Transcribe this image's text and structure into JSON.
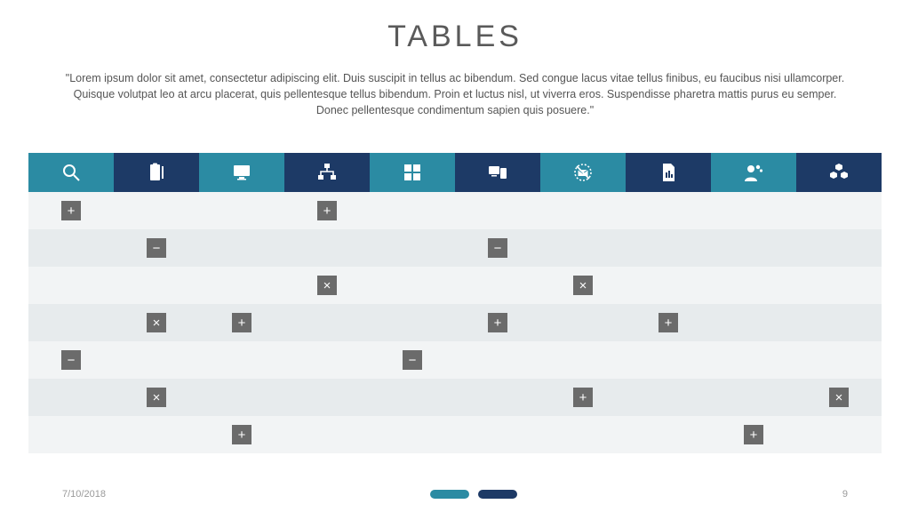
{
  "title": "TABLES",
  "subtitle": "\"Lorem ipsum dolor sit amet, consectetur adipiscing elit. Duis suscipit in tellus ac bibendum. Sed congue lacus vitae tellus finibus, eu faucibus nisi ullamcorper. Quisque volutpat leo at arcu placerat, quis pellentesque tellus bibendum. Proin et luctus nisl, ut viverra eros. Suspendisse pharetra mattis purus eu semper. Donec pellentesque condimentum sapien quis posuere.\"",
  "colors": {
    "teal": "#2b8ba3",
    "navy": "#1d3a66",
    "row_light": "#f2f4f5",
    "row_alt": "#e7ebed",
    "tag_bg": "#6b6b6b",
    "title_text": "#5a5a5a",
    "body_text": "#555555",
    "footer_text": "#9a9a9a",
    "icon_fill": "#ffffff"
  },
  "header": {
    "columns": [
      {
        "icon": "search",
        "bg_key": "teal"
      },
      {
        "icon": "clipboard",
        "bg_key": "navy"
      },
      {
        "icon": "monitor",
        "bg_key": "teal"
      },
      {
        "icon": "network",
        "bg_key": "navy"
      },
      {
        "icon": "grid",
        "bg_key": "teal"
      },
      {
        "icon": "devices",
        "bg_key": "navy"
      },
      {
        "icon": "no-mail",
        "bg_key": "teal"
      },
      {
        "icon": "document",
        "bg_key": "navy"
      },
      {
        "icon": "persona",
        "bg_key": "teal"
      },
      {
        "icon": "cubes",
        "bg_key": "navy"
      }
    ]
  },
  "symbols": {
    "plus": "+",
    "minus": "−",
    "cross": "×"
  },
  "rows": [
    {
      "bg_key": "row_light",
      "cells": [
        "plus",
        null,
        null,
        "plus",
        null,
        null,
        null,
        null,
        null,
        null
      ]
    },
    {
      "bg_key": "row_alt",
      "cells": [
        null,
        "minus",
        null,
        null,
        null,
        "minus",
        null,
        null,
        null,
        null
      ]
    },
    {
      "bg_key": "row_light",
      "cells": [
        null,
        null,
        null,
        "cross",
        null,
        null,
        "cross",
        null,
        null,
        null
      ]
    },
    {
      "bg_key": "row_alt",
      "cells": [
        null,
        "cross",
        "plus",
        null,
        null,
        "plus",
        null,
        "plus",
        null,
        null
      ]
    },
    {
      "bg_key": "row_light",
      "cells": [
        "minus",
        null,
        null,
        null,
        "minus",
        null,
        null,
        null,
        null,
        null
      ]
    },
    {
      "bg_key": "row_alt",
      "cells": [
        null,
        "cross",
        null,
        null,
        null,
        null,
        "plus",
        null,
        null,
        "cross"
      ]
    },
    {
      "bg_key": "row_light",
      "cells": [
        null,
        null,
        "plus",
        null,
        null,
        null,
        null,
        null,
        "plus",
        null
      ]
    }
  ],
  "footer": {
    "date": "7/10/2018",
    "page": "9",
    "pills": [
      {
        "color_key": "teal"
      },
      {
        "color_key": "navy"
      }
    ]
  }
}
